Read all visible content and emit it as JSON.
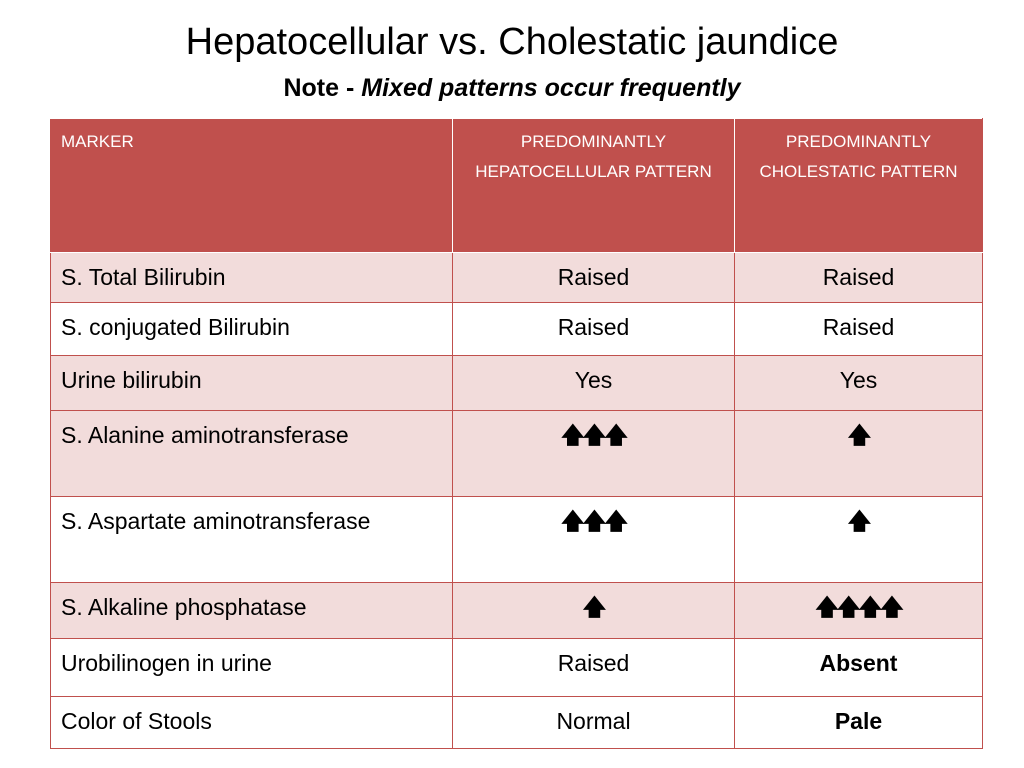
{
  "title": "Hepatocellular vs. Cholestatic jaundice",
  "subtitle": {
    "prefix": "Note - ",
    "emphasis": "Mixed patterns occur frequently"
  },
  "table": {
    "headers": [
      "MARKER",
      "PREDOMINANTLY HEPATOCELLULAR PATTERN",
      "PREDOMINANTLY CHOLESTATIC PATTERN"
    ],
    "rows": [
      {
        "marker": "S. Total Bilirubin",
        "hepatocellular": "Raised",
        "cholestatic": "Raised"
      },
      {
        "marker": "S. conjugated Bilirubin",
        "hepatocellular": "Raised",
        "cholestatic": "Raised"
      },
      {
        "marker": "Urine bilirubin",
        "hepatocellular": "Yes",
        "cholestatic": "Yes"
      },
      {
        "marker": "S. Alanine aminotransferase",
        "hepatocellular": "🡅🡅🡅",
        "cholestatic": "🡅"
      },
      {
        "marker": "S. Aspartate aminotransferase",
        "hepatocellular": "🡅🡅🡅",
        "cholestatic": "🡅"
      },
      {
        "marker": "S. Alkaline phosphatase",
        "hepatocellular": "🡅",
        "cholestatic": "🡅🡅🡅🡅"
      },
      {
        "marker": "Urobilinogen in urine",
        "hepatocellular": "Raised",
        "cholestatic": "Absent"
      },
      {
        "marker": "Color of Stools",
        "hepatocellular": "Normal",
        "cholestatic": "Pale"
      }
    ]
  },
  "colors": {
    "header_bg": "#c0504d",
    "band_row": "#f2dcdb",
    "plain_row": "#ffffff"
  }
}
